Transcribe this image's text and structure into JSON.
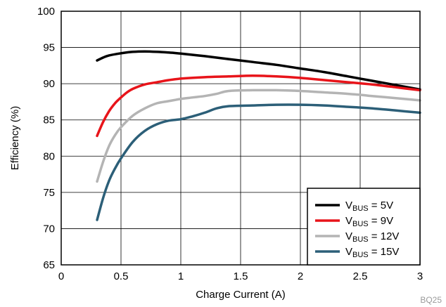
{
  "chart_data": {
    "type": "line",
    "xlabel": "Charge Current (A)",
    "ylabel": "Efficiency (%)",
    "xlim": [
      0,
      3
    ],
    "ylim": [
      65,
      100
    ],
    "xticks": [
      "0",
      "0.5",
      "1",
      "1.5",
      "2",
      "2.5",
      "3"
    ],
    "yticks": [
      "65",
      "70",
      "75",
      "80",
      "85",
      "90",
      "95",
      "100"
    ],
    "grid": true,
    "legend_position": "bottom-right",
    "series": [
      {
        "label_main": "V",
        "label_sub": "BUS",
        "label_rest": " = 5V",
        "color": "#000000",
        "x": [
          0.3,
          0.35,
          0.4,
          0.5,
          0.6,
          0.7,
          0.8,
          0.9,
          1.0,
          1.2,
          1.4,
          1.6,
          1.8,
          2.0,
          2.2,
          2.4,
          2.6,
          2.8,
          3.0
        ],
        "y": [
          93.2,
          93.6,
          93.9,
          94.2,
          94.4,
          94.45,
          94.4,
          94.3,
          94.15,
          93.8,
          93.4,
          93.0,
          92.6,
          92.1,
          91.6,
          91.0,
          90.4,
          89.8,
          89.2
        ]
      },
      {
        "label_main": "V",
        "label_sub": "BUS",
        "label_rest": " = 9V",
        "color": "#e8141a",
        "x": [
          0.3,
          0.35,
          0.4,
          0.45,
          0.5,
          0.55,
          0.6,
          0.7,
          0.8,
          0.9,
          1.0,
          1.2,
          1.4,
          1.6,
          1.8,
          2.0,
          2.2,
          2.4,
          2.6,
          2.8,
          3.0
        ],
        "y": [
          82.8,
          84.7,
          86.2,
          87.3,
          88.1,
          88.8,
          89.3,
          89.9,
          90.2,
          90.5,
          90.7,
          90.9,
          91.0,
          91.1,
          91.0,
          90.8,
          90.5,
          90.2,
          89.9,
          89.5,
          89.1
        ]
      },
      {
        "label_main": "V",
        "label_sub": "BUS",
        "label_rest": " = 12V",
        "color": "#b4b4b4",
        "x": [
          0.3,
          0.35,
          0.4,
          0.45,
          0.5,
          0.6,
          0.7,
          0.8,
          0.9,
          1.0,
          1.1,
          1.2,
          1.3,
          1.4,
          1.6,
          1.8,
          2.0,
          2.2,
          2.4,
          2.6,
          2.8,
          3.0
        ],
        "y": [
          76.5,
          79.2,
          81.4,
          82.9,
          84.0,
          85.6,
          86.6,
          87.3,
          87.6,
          87.9,
          88.1,
          88.3,
          88.6,
          89.0,
          89.1,
          89.1,
          89.0,
          88.8,
          88.6,
          88.3,
          88.0,
          87.7
        ]
      },
      {
        "label_main": "V",
        "label_sub": "BUS",
        "label_rest": " = 15V",
        "color": "#2c5f78",
        "x": [
          0.3,
          0.35,
          0.4,
          0.45,
          0.5,
          0.6,
          0.7,
          0.8,
          0.9,
          1.0,
          1.1,
          1.2,
          1.3,
          1.4,
          1.6,
          1.8,
          2.0,
          2.2,
          2.4,
          2.6,
          2.8,
          3.0
        ],
        "y": [
          71.2,
          74.2,
          76.6,
          78.3,
          79.7,
          82.0,
          83.5,
          84.4,
          84.9,
          85.1,
          85.5,
          86.0,
          86.6,
          86.9,
          87.0,
          87.1,
          87.1,
          87.0,
          86.8,
          86.6,
          86.3,
          86.0
        ]
      }
    ],
    "corner_text": "BQ25"
  }
}
